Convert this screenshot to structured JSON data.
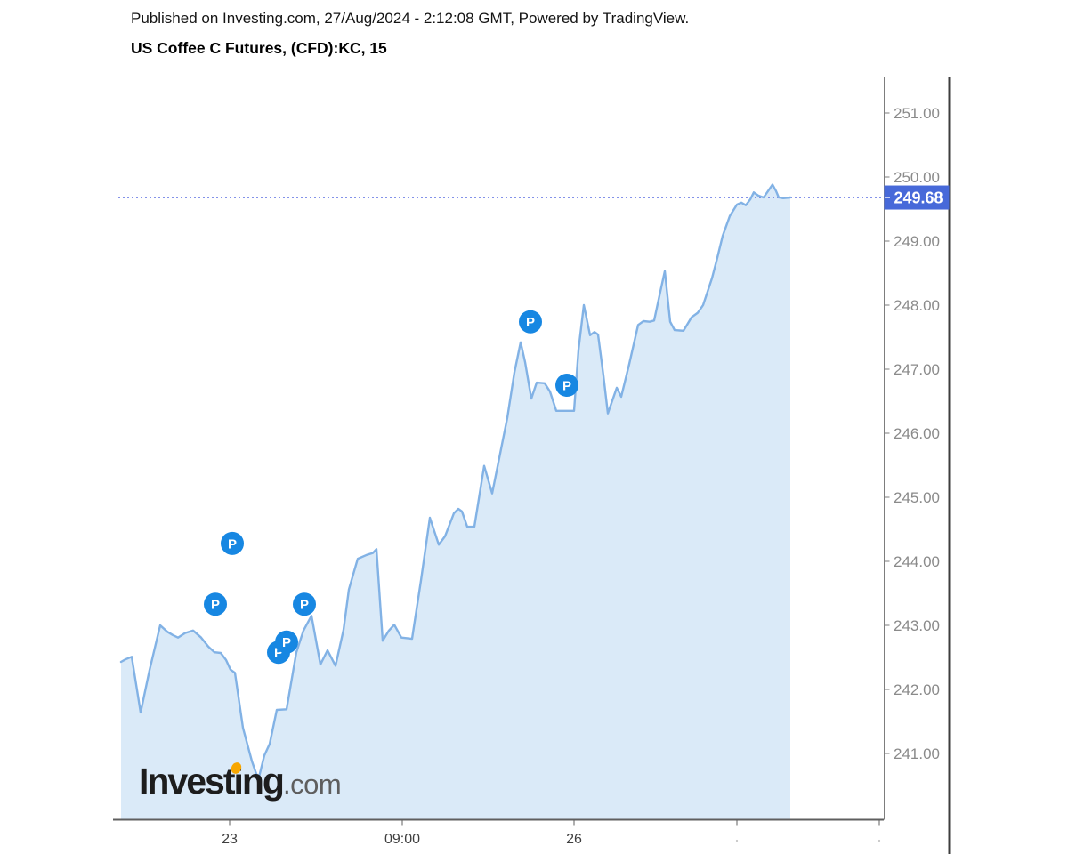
{
  "header": {
    "published_line": "Published on Investing.com, 27/Aug/2024 - 2:12:08 GMT, Powered by TradingView.",
    "instrument_title": "US Coffee C Futures, (CFD):KC, 15"
  },
  "watermark": {
    "brand": "Investing",
    "suffix": ".com"
  },
  "price_scale": {
    "current_price": "249.68",
    "tick_labels": [
      "251.00",
      "250.00",
      "249.00",
      "248.00",
      "247.00",
      "246.00",
      "245.00",
      "244.00",
      "243.00",
      "242.00",
      "241.00"
    ]
  },
  "time_scale": {
    "labels": [
      {
        "text": "23",
        "x": 258
      },
      {
        "text": "09:00",
        "x": 452
      },
      {
        "text": "26",
        "x": 645
      }
    ],
    "extra_ticks_x": [
      828,
      988
    ]
  },
  "chart_data": {
    "type": "area",
    "title": "US Coffee C Futures, (CFD):KC, 15",
    "symbol": "KC",
    "interval": "15",
    "last_price": 249.68,
    "ylim": [
      239.96,
      251.56
    ],
    "y_ticks": [
      241,
      242,
      243,
      244,
      245,
      246,
      247,
      248,
      249,
      250,
      251
    ],
    "x_tick_labels": [
      "23",
      "09:00",
      "26"
    ],
    "legend": "none",
    "grid": "off",
    "points": [
      [
        136,
        242.43
      ],
      [
        141,
        242.47
      ],
      [
        148,
        242.51
      ],
      [
        158,
        241.64
      ],
      [
        168,
        242.3
      ],
      [
        180,
        243.0
      ],
      [
        188,
        242.9
      ],
      [
        194,
        242.85
      ],
      [
        200,
        242.81
      ],
      [
        208,
        242.88
      ],
      [
        217,
        242.92
      ],
      [
        226,
        242.81
      ],
      [
        234,
        242.67
      ],
      [
        241,
        242.58
      ],
      [
        248,
        242.57
      ],
      [
        254,
        242.46
      ],
      [
        259,
        242.31
      ],
      [
        264,
        242.26
      ],
      [
        273,
        241.4
      ],
      [
        283,
        240.88
      ],
      [
        288,
        240.68
      ],
      [
        291,
        240.63
      ],
      [
        297,
        240.97
      ],
      [
        303,
        241.15
      ],
      [
        311,
        241.68
      ],
      [
        322,
        241.69
      ],
      [
        333,
        242.58
      ],
      [
        341,
        242.92
      ],
      [
        350,
        243.15
      ],
      [
        360,
        242.39
      ],
      [
        368,
        242.61
      ],
      [
        377,
        242.37
      ],
      [
        386,
        242.93
      ],
      [
        392,
        243.56
      ],
      [
        398,
        243.85
      ],
      [
        402,
        244.04
      ],
      [
        412,
        244.1
      ],
      [
        419,
        244.13
      ],
      [
        423,
        244.19
      ],
      [
        430,
        242.76
      ],
      [
        437,
        242.92
      ],
      [
        443,
        243.01
      ],
      [
        451,
        242.81
      ],
      [
        463,
        242.79
      ],
      [
        473,
        243.7
      ],
      [
        483,
        244.68
      ],
      [
        493,
        244.26
      ],
      [
        500,
        244.39
      ],
      [
        510,
        244.75
      ],
      [
        515,
        244.82
      ],
      [
        519,
        244.78
      ],
      [
        525,
        244.54
      ],
      [
        533,
        244.54
      ],
      [
        544,
        245.49
      ],
      [
        553,
        245.06
      ],
      [
        570,
        246.24
      ],
      [
        578,
        246.95
      ],
      [
        585,
        247.42
      ],
      [
        590,
        247.11
      ],
      [
        597,
        246.54
      ],
      [
        603,
        246.79
      ],
      [
        612,
        246.78
      ],
      [
        618,
        246.65
      ],
      [
        625,
        246.35
      ],
      [
        645,
        246.35
      ],
      [
        650,
        247.3
      ],
      [
        656,
        248.0
      ],
      [
        663,
        247.53
      ],
      [
        668,
        247.58
      ],
      [
        672,
        247.54
      ],
      [
        678,
        246.9
      ],
      [
        683,
        246.31
      ],
      [
        693,
        246.71
      ],
      [
        698,
        246.57
      ],
      [
        707,
        247.08
      ],
      [
        717,
        247.69
      ],
      [
        723,
        247.75
      ],
      [
        730,
        247.74
      ],
      [
        735,
        247.76
      ],
      [
        741,
        248.15
      ],
      [
        747,
        248.53
      ],
      [
        753,
        247.74
      ],
      [
        758,
        247.61
      ],
      [
        768,
        247.6
      ],
      [
        777,
        247.81
      ],
      [
        784,
        247.88
      ],
      [
        790,
        248.0
      ],
      [
        800,
        248.42
      ],
      [
        806,
        248.74
      ],
      [
        812,
        249.08
      ],
      [
        820,
        249.39
      ],
      [
        828,
        249.57
      ],
      [
        833,
        249.6
      ],
      [
        838,
        249.56
      ],
      [
        843,
        249.65
      ],
      [
        847,
        249.76
      ],
      [
        852,
        249.71
      ],
      [
        858,
        249.68
      ],
      [
        863,
        249.78
      ],
      [
        868,
        249.88
      ],
      [
        872,
        249.78
      ],
      [
        875,
        249.68
      ],
      [
        880,
        249.67
      ],
      [
        888,
        249.68
      ]
    ],
    "markers": [
      {
        "label": "P",
        "x": 242,
        "price": 243.33
      },
      {
        "label": "P",
        "x": 261,
        "price": 244.28
      },
      {
        "label": "P",
        "x": 313,
        "price": 242.58
      },
      {
        "label": "P",
        "x": 322,
        "price": 242.74
      },
      {
        "label": "P",
        "x": 342,
        "price": 243.33
      },
      {
        "label": "P",
        "x": 596,
        "price": 247.74
      },
      {
        "label": "P",
        "x": 637,
        "price": 246.75
      }
    ]
  },
  "colors": {
    "line": "#82b2e5",
    "area_fill": "#daeaf8",
    "marker": "#1787e2",
    "marker_text": "#ffffff",
    "tag_bg": "#4769d9",
    "tag_text": "#ffffff",
    "dotted_line": "#5c6ee2",
    "y_label": "#8a8a8a",
    "x_label": "#3f3f3f",
    "axis": "#5f5f5f",
    "scale_border": "#7d7d7d",
    "right_border": "#3d3d3d",
    "logo_text": "#1d1d1d",
    "logo_suffix": "#5e5e5e",
    "logo_orange": "#f7a600"
  }
}
